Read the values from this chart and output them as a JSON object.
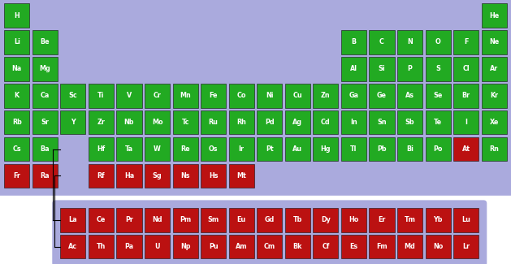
{
  "green": "#22aa22",
  "red": "#bb1111",
  "bg_color": "#ffffff",
  "panel_color": "#aaaadd",
  "text_color": "#ffffff",
  "fig_width": 6.29,
  "fig_height": 3.25,
  "elements": [
    {
      "symbol": "H",
      "row": 0,
      "col": 0,
      "color": "green"
    },
    {
      "symbol": "He",
      "row": 0,
      "col": 17,
      "color": "green"
    },
    {
      "symbol": "Li",
      "row": 1,
      "col": 0,
      "color": "green"
    },
    {
      "symbol": "Be",
      "row": 1,
      "col": 1,
      "color": "green"
    },
    {
      "symbol": "B",
      "row": 1,
      "col": 12,
      "color": "green"
    },
    {
      "symbol": "C",
      "row": 1,
      "col": 13,
      "color": "green"
    },
    {
      "symbol": "N",
      "row": 1,
      "col": 14,
      "color": "green"
    },
    {
      "symbol": "O",
      "row": 1,
      "col": 15,
      "color": "green"
    },
    {
      "symbol": "F",
      "row": 1,
      "col": 16,
      "color": "green"
    },
    {
      "symbol": "Ne",
      "row": 1,
      "col": 17,
      "color": "green"
    },
    {
      "symbol": "Na",
      "row": 2,
      "col": 0,
      "color": "green"
    },
    {
      "symbol": "Mg",
      "row": 2,
      "col": 1,
      "color": "green"
    },
    {
      "symbol": "Al",
      "row": 2,
      "col": 12,
      "color": "green"
    },
    {
      "symbol": "Si",
      "row": 2,
      "col": 13,
      "color": "green"
    },
    {
      "symbol": "P",
      "row": 2,
      "col": 14,
      "color": "green"
    },
    {
      "symbol": "S",
      "row": 2,
      "col": 15,
      "color": "green"
    },
    {
      "symbol": "Cl",
      "row": 2,
      "col": 16,
      "color": "green"
    },
    {
      "symbol": "Ar",
      "row": 2,
      "col": 17,
      "color": "green"
    },
    {
      "symbol": "K",
      "row": 3,
      "col": 0,
      "color": "green"
    },
    {
      "symbol": "Ca",
      "row": 3,
      "col": 1,
      "color": "green"
    },
    {
      "symbol": "Sc",
      "row": 3,
      "col": 2,
      "color": "green"
    },
    {
      "symbol": "Ti",
      "row": 3,
      "col": 3,
      "color": "green"
    },
    {
      "symbol": "V",
      "row": 3,
      "col": 4,
      "color": "green"
    },
    {
      "symbol": "Cr",
      "row": 3,
      "col": 5,
      "color": "green"
    },
    {
      "symbol": "Mn",
      "row": 3,
      "col": 6,
      "color": "green"
    },
    {
      "symbol": "Fe",
      "row": 3,
      "col": 7,
      "color": "green"
    },
    {
      "symbol": "Co",
      "row": 3,
      "col": 8,
      "color": "green"
    },
    {
      "symbol": "Ni",
      "row": 3,
      "col": 9,
      "color": "green"
    },
    {
      "symbol": "Cu",
      "row": 3,
      "col": 10,
      "color": "green"
    },
    {
      "symbol": "Zn",
      "row": 3,
      "col": 11,
      "color": "green"
    },
    {
      "symbol": "Ga",
      "row": 3,
      "col": 12,
      "color": "green"
    },
    {
      "symbol": "Ge",
      "row": 3,
      "col": 13,
      "color": "green"
    },
    {
      "symbol": "As",
      "row": 3,
      "col": 14,
      "color": "green"
    },
    {
      "symbol": "Se",
      "row": 3,
      "col": 15,
      "color": "green"
    },
    {
      "symbol": "Br",
      "row": 3,
      "col": 16,
      "color": "green"
    },
    {
      "symbol": "Kr",
      "row": 3,
      "col": 17,
      "color": "green"
    },
    {
      "symbol": "Rb",
      "row": 4,
      "col": 0,
      "color": "green"
    },
    {
      "symbol": "Sr",
      "row": 4,
      "col": 1,
      "color": "green"
    },
    {
      "symbol": "Y",
      "row": 4,
      "col": 2,
      "color": "green"
    },
    {
      "symbol": "Zr",
      "row": 4,
      "col": 3,
      "color": "green"
    },
    {
      "symbol": "Nb",
      "row": 4,
      "col": 4,
      "color": "green"
    },
    {
      "symbol": "Mo",
      "row": 4,
      "col": 5,
      "color": "green"
    },
    {
      "symbol": "Tc",
      "row": 4,
      "col": 6,
      "color": "green"
    },
    {
      "symbol": "Ru",
      "row": 4,
      "col": 7,
      "color": "green"
    },
    {
      "symbol": "Rh",
      "row": 4,
      "col": 8,
      "color": "green"
    },
    {
      "symbol": "Pd",
      "row": 4,
      "col": 9,
      "color": "green"
    },
    {
      "symbol": "Ag",
      "row": 4,
      "col": 10,
      "color": "green"
    },
    {
      "symbol": "Cd",
      "row": 4,
      "col": 11,
      "color": "green"
    },
    {
      "symbol": "In",
      "row": 4,
      "col": 12,
      "color": "green"
    },
    {
      "symbol": "Sn",
      "row": 4,
      "col": 13,
      "color": "green"
    },
    {
      "symbol": "Sb",
      "row": 4,
      "col": 14,
      "color": "green"
    },
    {
      "symbol": "Te",
      "row": 4,
      "col": 15,
      "color": "green"
    },
    {
      "symbol": "I",
      "row": 4,
      "col": 16,
      "color": "green"
    },
    {
      "symbol": "Xe",
      "row": 4,
      "col": 17,
      "color": "green"
    },
    {
      "symbol": "Cs",
      "row": 5,
      "col": 0,
      "color": "green"
    },
    {
      "symbol": "Ba",
      "row": 5,
      "col": 1,
      "color": "green"
    },
    {
      "symbol": "Hf",
      "row": 5,
      "col": 3,
      "color": "green"
    },
    {
      "symbol": "Ta",
      "row": 5,
      "col": 4,
      "color": "green"
    },
    {
      "symbol": "W",
      "row": 5,
      "col": 5,
      "color": "green"
    },
    {
      "symbol": "Re",
      "row": 5,
      "col": 6,
      "color": "green"
    },
    {
      "symbol": "Os",
      "row": 5,
      "col": 7,
      "color": "green"
    },
    {
      "symbol": "Ir",
      "row": 5,
      "col": 8,
      "color": "green"
    },
    {
      "symbol": "Pt",
      "row": 5,
      "col": 9,
      "color": "green"
    },
    {
      "symbol": "Au",
      "row": 5,
      "col": 10,
      "color": "green"
    },
    {
      "symbol": "Hg",
      "row": 5,
      "col": 11,
      "color": "green"
    },
    {
      "symbol": "Tl",
      "row": 5,
      "col": 12,
      "color": "green"
    },
    {
      "symbol": "Pb",
      "row": 5,
      "col": 13,
      "color": "green"
    },
    {
      "symbol": "Bi",
      "row": 5,
      "col": 14,
      "color": "green"
    },
    {
      "symbol": "Po",
      "row": 5,
      "col": 15,
      "color": "green"
    },
    {
      "symbol": "At",
      "row": 5,
      "col": 16,
      "color": "red"
    },
    {
      "symbol": "Rn",
      "row": 5,
      "col": 17,
      "color": "green"
    },
    {
      "symbol": "Fr",
      "row": 6,
      "col": 0,
      "color": "red"
    },
    {
      "symbol": "Ra",
      "row": 6,
      "col": 1,
      "color": "red"
    },
    {
      "symbol": "Rf",
      "row": 6,
      "col": 3,
      "color": "red"
    },
    {
      "symbol": "Ha",
      "row": 6,
      "col": 4,
      "color": "red"
    },
    {
      "symbol": "Sg",
      "row": 6,
      "col": 5,
      "color": "red"
    },
    {
      "symbol": "Ns",
      "row": 6,
      "col": 6,
      "color": "red"
    },
    {
      "symbol": "Hs",
      "row": 6,
      "col": 7,
      "color": "red"
    },
    {
      "symbol": "Mt",
      "row": 6,
      "col": 8,
      "color": "red"
    },
    {
      "symbol": "La",
      "row": 8,
      "col": 2,
      "color": "red"
    },
    {
      "symbol": "Ce",
      "row": 8,
      "col": 3,
      "color": "red"
    },
    {
      "symbol": "Pr",
      "row": 8,
      "col": 4,
      "color": "red"
    },
    {
      "symbol": "Nd",
      "row": 8,
      "col": 5,
      "color": "red"
    },
    {
      "symbol": "Pm",
      "row": 8,
      "col": 6,
      "color": "red"
    },
    {
      "symbol": "Sm",
      "row": 8,
      "col": 7,
      "color": "red"
    },
    {
      "symbol": "Eu",
      "row": 8,
      "col": 8,
      "color": "red"
    },
    {
      "symbol": "Gd",
      "row": 8,
      "col": 9,
      "color": "red"
    },
    {
      "symbol": "Tb",
      "row": 8,
      "col": 10,
      "color": "red"
    },
    {
      "symbol": "Dy",
      "row": 8,
      "col": 11,
      "color": "red"
    },
    {
      "symbol": "Ho",
      "row": 8,
      "col": 12,
      "color": "red"
    },
    {
      "symbol": "Er",
      "row": 8,
      "col": 13,
      "color": "red"
    },
    {
      "symbol": "Tm",
      "row": 8,
      "col": 14,
      "color": "red"
    },
    {
      "symbol": "Yb",
      "row": 8,
      "col": 15,
      "color": "red"
    },
    {
      "symbol": "Lu",
      "row": 8,
      "col": 16,
      "color": "red"
    },
    {
      "symbol": "Ac",
      "row": 9,
      "col": 2,
      "color": "red"
    },
    {
      "symbol": "Th",
      "row": 9,
      "col": 3,
      "color": "red"
    },
    {
      "symbol": "Pa",
      "row": 9,
      "col": 4,
      "color": "red"
    },
    {
      "symbol": "U",
      "row": 9,
      "col": 5,
      "color": "red"
    },
    {
      "symbol": "Np",
      "row": 9,
      "col": 6,
      "color": "red"
    },
    {
      "symbol": "Pu",
      "row": 9,
      "col": 7,
      "color": "red"
    },
    {
      "symbol": "Am",
      "row": 9,
      "col": 8,
      "color": "red"
    },
    {
      "symbol": "Cm",
      "row": 9,
      "col": 9,
      "color": "red"
    },
    {
      "symbol": "Bk",
      "row": 9,
      "col": 10,
      "color": "red"
    },
    {
      "symbol": "Cf",
      "row": 9,
      "col": 11,
      "color": "red"
    },
    {
      "symbol": "Es",
      "row": 9,
      "col": 12,
      "color": "red"
    },
    {
      "symbol": "Fm",
      "row": 9,
      "col": 13,
      "color": "red"
    },
    {
      "symbol": "Md",
      "row": 9,
      "col": 14,
      "color": "red"
    },
    {
      "symbol": "No",
      "row": 9,
      "col": 15,
      "color": "red"
    },
    {
      "symbol": "Lr",
      "row": 9,
      "col": 16,
      "color": "red"
    }
  ]
}
